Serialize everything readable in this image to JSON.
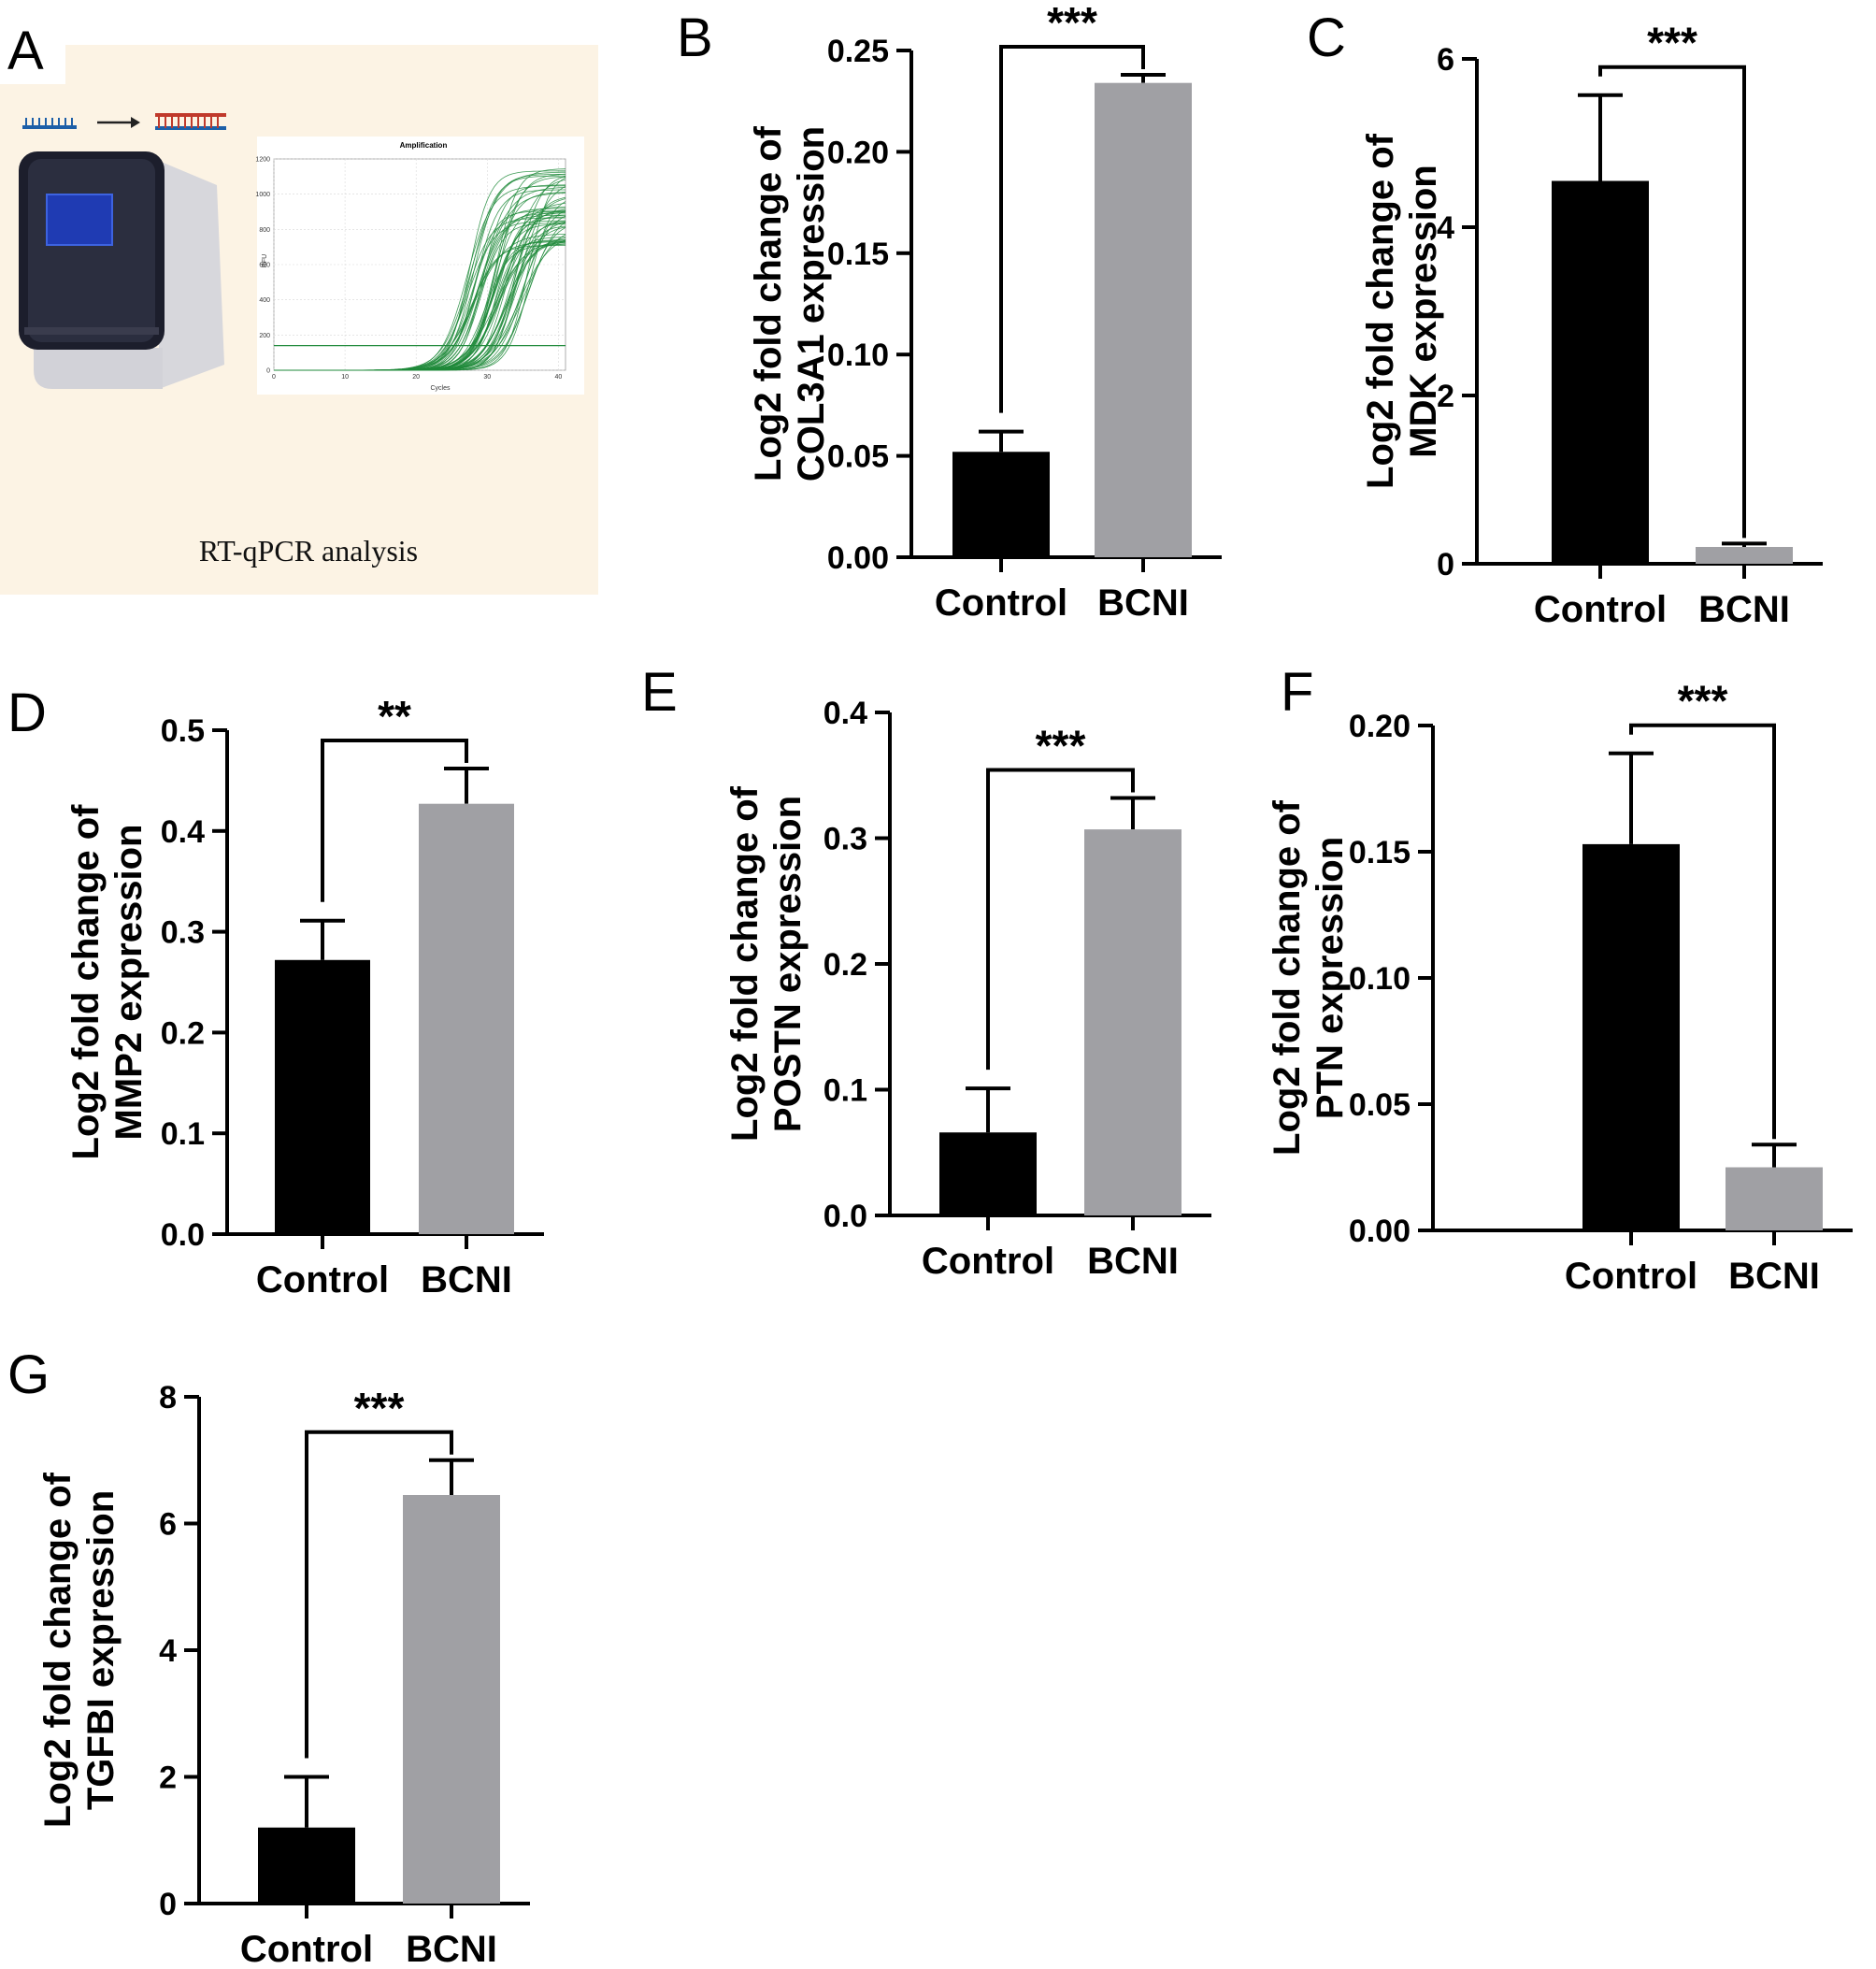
{
  "figure": {
    "panel_a": {
      "letter": "A",
      "caption": "RT-qPCR analysis",
      "amp_plot": {
        "title": "Amplification",
        "ylabel": "RFU",
        "xlabel": "Cycles",
        "y_ticks": [
          "1200",
          "1000",
          "800",
          "600",
          "400",
          "200",
          "0"
        ],
        "x_ticks": [
          "0",
          "10",
          "20",
          "30",
          "40"
        ],
        "threshold": 140,
        "ylim": [
          0,
          1200
        ],
        "xlim": [
          0,
          41
        ]
      },
      "colors": {
        "background": "#fcf3e4",
        "curve": "#1f8a3a",
        "screen": "#1f3bb3"
      }
    }
  },
  "chart_data": [
    {
      "panel": "B",
      "type": "bar",
      "ylabel": "Log2 fold change of COL3A1 expression",
      "ylabel_lines": [
        "Log2 fold change of",
        "COL3A1 expression"
      ],
      "categories": [
        "Control",
        "BCNI"
      ],
      "values": [
        0.052,
        0.234
      ],
      "errors": [
        0.01,
        0.004
      ],
      "ylim": [
        0,
        0.25
      ],
      "yticks": [
        0,
        0.05,
        0.1,
        0.15,
        0.2,
        0.25
      ],
      "ytick_labels": [
        "0.00",
        "0.05",
        "0.10",
        "0.15",
        "0.20",
        "0.25"
      ],
      "significance": "***",
      "colors": [
        "#000000",
        "#a0a0a4"
      ]
    },
    {
      "panel": "C",
      "type": "bar",
      "ylabel": "Log2 fold change of MDK expression",
      "ylabel_lines": [
        "Log2 fold change of",
        "MDK expression"
      ],
      "categories": [
        "Control",
        "BCNI"
      ],
      "values": [
        4.55,
        0.2
      ],
      "errors": [
        1.02,
        0.04
      ],
      "ylim": [
        0,
        6
      ],
      "yticks": [
        0,
        2,
        4,
        6
      ],
      "ytick_labels": [
        "0",
        "2",
        "4",
        "6"
      ],
      "significance": "***",
      "colors": [
        "#000000",
        "#a0a0a4"
      ]
    },
    {
      "panel": "D",
      "type": "bar",
      "ylabel": "Log2 fold change of MMP2 expression",
      "ylabel_lines": [
        "Log2 fold change of",
        "MMP2 expression"
      ],
      "categories": [
        "Control",
        "BCNI"
      ],
      "values": [
        0.272,
        0.427
      ],
      "errors": [
        0.039,
        0.035
      ],
      "ylim": [
        0,
        0.5
      ],
      "yticks": [
        0,
        0.1,
        0.2,
        0.3,
        0.4,
        0.5
      ],
      "ytick_labels": [
        "0.0",
        "0.1",
        "0.2",
        "0.3",
        "0.4",
        "0.5"
      ],
      "significance": "**",
      "colors": [
        "#000000",
        "#a0a0a4"
      ]
    },
    {
      "panel": "E",
      "type": "bar",
      "ylabel": "Log2 fold change of POSTN expression",
      "ylabel_lines": [
        "Log2 fold change of",
        "POSTN expression"
      ],
      "categories": [
        "Control",
        "BCNI"
      ],
      "values": [
        0.066,
        0.307
      ],
      "errors": [
        0.035,
        0.025
      ],
      "ylim": [
        0,
        0.4
      ],
      "yticks": [
        0,
        0.1,
        0.2,
        0.3,
        0.4
      ],
      "ytick_labels": [
        "0.0",
        "0.1",
        "0.2",
        "0.3",
        "0.4"
      ],
      "significance": "***",
      "colors": [
        "#000000",
        "#a0a0a4"
      ]
    },
    {
      "panel": "F",
      "type": "bar",
      "ylabel": "Log2 fold change of PTN expression",
      "ylabel_lines": [
        "Log2 fold change of",
        "PTN expression"
      ],
      "categories": [
        "Control",
        "BCNI"
      ],
      "values": [
        0.153,
        0.025
      ],
      "errors": [
        0.036,
        0.009
      ],
      "ylim": [
        0,
        0.2
      ],
      "yticks": [
        0,
        0.05,
        0.1,
        0.15,
        0.2
      ],
      "ytick_labels": [
        "0.00",
        "0.05",
        "0.10",
        "0.15",
        "0.20"
      ],
      "significance": "***",
      "colors": [
        "#000000",
        "#a0a0a4"
      ]
    },
    {
      "panel": "G",
      "type": "bar",
      "ylabel": "Log2 fold change of TGFBI expression",
      "ylabel_lines": [
        "Log2 fold change of",
        "TGFBI expression"
      ],
      "categories": [
        "Control",
        "BCNI"
      ],
      "values": [
        1.2,
        6.45
      ],
      "errors": [
        0.8,
        0.55
      ],
      "ylim": [
        0,
        8
      ],
      "yticks": [
        0,
        2,
        4,
        6,
        8
      ],
      "ytick_labels": [
        "0",
        "2",
        "4",
        "6",
        "8"
      ],
      "significance": "***",
      "colors": [
        "#000000",
        "#a0a0a4"
      ]
    }
  ]
}
